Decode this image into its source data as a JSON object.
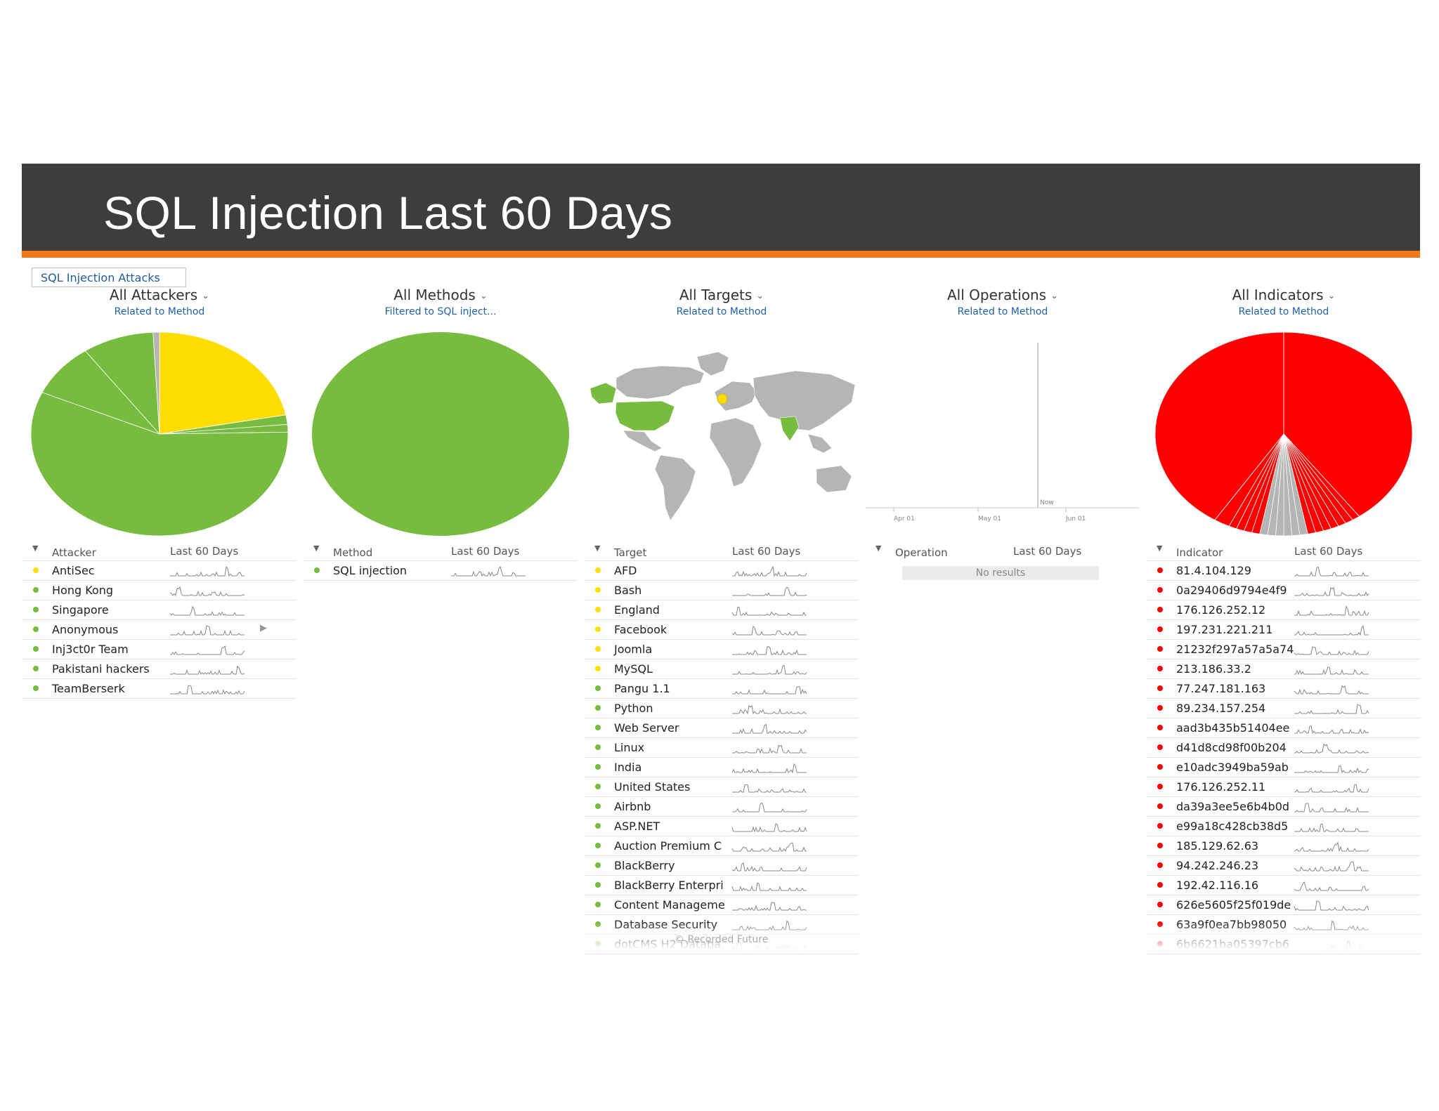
{
  "slide_title": "SQL Injection Last 60 Days",
  "tab_chip": "SQL Injection Attacks",
  "credit": "© Recorded Future",
  "colors": {
    "green": "#77bb3f",
    "yellow": "#ffdd00",
    "red": "#ff0000",
    "gray": "#b5b5b5",
    "banner": "#3d3d3d",
    "accent": "#f07819"
  },
  "panels": [
    {
      "title": "All Attackers",
      "subtitle": "Related to Method",
      "col_name": "Attacker",
      "col_time": "Last 60 Days",
      "rows": [
        {
          "label": "AntiSec",
          "status": "yellow"
        },
        {
          "label": "Hong Kong",
          "status": "green"
        },
        {
          "label": "Singapore",
          "status": "green"
        },
        {
          "label": "Anonymous",
          "status": "green"
        },
        {
          "label": "Inj3ct0r Team",
          "status": "green"
        },
        {
          "label": "Pakistani hackers",
          "status": "green"
        },
        {
          "label": "TeamBerserk",
          "status": "green"
        }
      ]
    },
    {
      "title": "All Methods",
      "subtitle": "Filtered to SQL inject...",
      "col_name": "Method",
      "col_time": "Last 60 Days",
      "rows": [
        {
          "label": "SQL injection",
          "status": "green"
        }
      ]
    },
    {
      "title": "All Targets",
      "subtitle": "Related to Method",
      "col_name": "Target",
      "col_time": "Last 60 Days",
      "rows": [
        {
          "label": "AFD",
          "status": "yellow"
        },
        {
          "label": "Bash",
          "status": "yellow"
        },
        {
          "label": "England",
          "status": "yellow"
        },
        {
          "label": "Facebook",
          "status": "yellow"
        },
        {
          "label": "Joomla",
          "status": "yellow"
        },
        {
          "label": "MySQL",
          "status": "yellow"
        },
        {
          "label": "Pangu 1.1",
          "status": "green"
        },
        {
          "label": "Python",
          "status": "green"
        },
        {
          "label": "Web Server",
          "status": "green"
        },
        {
          "label": "Linux",
          "status": "green"
        },
        {
          "label": "India",
          "status": "green"
        },
        {
          "label": "United States",
          "status": "green"
        },
        {
          "label": "Airbnb",
          "status": "green"
        },
        {
          "label": "ASP.NET",
          "status": "green"
        },
        {
          "label": "Auction Premium C",
          "status": "green"
        },
        {
          "label": "BlackBerry",
          "status": "green"
        },
        {
          "label": "BlackBerry Enterpri",
          "status": "green"
        },
        {
          "label": "Content Manageme",
          "status": "green"
        },
        {
          "label": "Database Security",
          "status": "green"
        },
        {
          "label": "dotCMS H2 Databa",
          "status": "green"
        }
      ]
    },
    {
      "title": "All Operations",
      "subtitle": "Related to Method",
      "col_name": "Operation",
      "col_time": "Last 60 Days",
      "no_results": "No results",
      "timeline": {
        "labels": [
          "Apr 01",
          "May 01",
          "Jun 01"
        ],
        "now": "Now"
      },
      "rows": []
    },
    {
      "title": "All Indicators",
      "subtitle": "Related to Method",
      "col_name": "Indicator",
      "col_time": "Last 60 Days",
      "rows": [
        {
          "label": "81.4.104.129",
          "status": "red"
        },
        {
          "label": "0a29406d9794e4f9",
          "status": "red"
        },
        {
          "label": "176.126.252.12",
          "status": "red"
        },
        {
          "label": "197.231.221.211",
          "status": "red"
        },
        {
          "label": "21232f297a57a5a74",
          "status": "red"
        },
        {
          "label": "213.186.33.2",
          "status": "red"
        },
        {
          "label": "77.247.181.163",
          "status": "red"
        },
        {
          "label": "89.234.157.254",
          "status": "red"
        },
        {
          "label": "aad3b435b51404ee",
          "status": "red"
        },
        {
          "label": "d41d8cd98f00b204",
          "status": "red"
        },
        {
          "label": "e10adc3949ba59ab",
          "status": "red"
        },
        {
          "label": "176.126.252.11",
          "status": "red"
        },
        {
          "label": "da39a3ee5e6b4b0d",
          "status": "red"
        },
        {
          "label": "e99a18c428cb38d5",
          "status": "red"
        },
        {
          "label": "185.129.62.63",
          "status": "red"
        },
        {
          "label": "94.242.246.23",
          "status": "red"
        },
        {
          "label": "192.42.116.16",
          "status": "red"
        },
        {
          "label": "626e5605f25f019de",
          "status": "red"
        },
        {
          "label": "63a9f0ea7bb98050",
          "status": "red"
        },
        {
          "label": "6b6621ba05397cb6",
          "status": "red"
        }
      ]
    }
  ],
  "chart_data": [
    {
      "type": "pie",
      "title": "All Attackers",
      "categories": [
        "AntiSec",
        "Hong Kong",
        "Singapore",
        "Anonymous",
        "Inj3ct0r Team",
        "Pakistani hackers",
        "TeamBerserk"
      ],
      "values": [
        22,
        1.5,
        1.2,
        57,
        8.5,
        9,
        0.8
      ]
    },
    {
      "type": "pie",
      "title": "All Methods",
      "categories": [
        "SQL injection"
      ],
      "values": [
        100
      ]
    },
    {
      "type": "pie",
      "title": "All Indicators",
      "categories": [
        "81.4.104.129",
        "0a29406d9794e4f9",
        "176.126.252.12",
        "197.231.221.211",
        "21232f297a57a5a74",
        "213.186.33.2",
        "77.247.181.163",
        "89.234.157.254",
        "aad3b435b51404ee",
        "d41d8cd98f00b204",
        "e10adc3949ba59ab",
        "176.126.252.11",
        "da39a3ee5e6b4b0d",
        "e99a18c428cb38d5",
        "185.129.62.63",
        "94.242.246.23",
        "192.42.116.16",
        "626e5605f25f019de",
        "63a9f0ea7bb98050",
        "6b6621ba05397cb6"
      ],
      "values": [
        40,
        1,
        1,
        1,
        1,
        1,
        1,
        1,
        1,
        1,
        1,
        1,
        1,
        1,
        1,
        1,
        1,
        1,
        2,
        41
      ]
    }
  ]
}
